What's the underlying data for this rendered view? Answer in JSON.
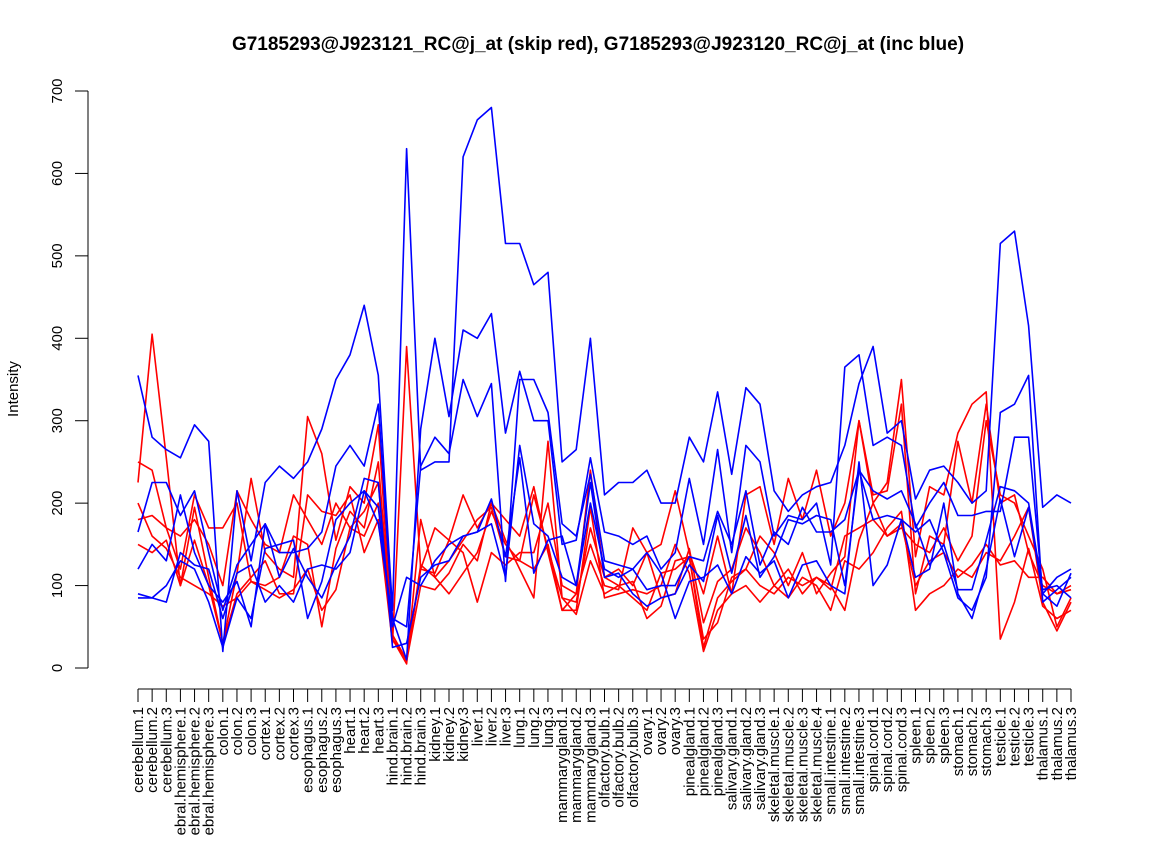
{
  "chart_data": {
    "type": "line",
    "title": "G7185293@J923121_RC@j_at (skip red), G7185293@J923120_RC@j_at (inc blue)",
    "xlabel": "",
    "ylabel": "Intensity",
    "ylim": [
      0,
      700
    ],
    "yticks": [
      0,
      100,
      200,
      300,
      400,
      500,
      600,
      700
    ],
    "categories": [
      "cerebellum.1",
      "cerebellum.2",
      "cerebellum.3",
      "cerebral.hemisphere.1",
      "cerebral.hemisphere.2",
      "cerebral.hemisphere.3",
      "colon.1",
      "colon.2",
      "colon.3",
      "cortex.1",
      "cortex.2",
      "cortex.3",
      "esophagus.1",
      "esophagus.2",
      "esophagus.3",
      "heart.1",
      "heart.2",
      "heart.3",
      "hind.brain.1",
      "hind.brain.2",
      "hind.brain.3",
      "kidney.1",
      "kidney.2",
      "kidney.3",
      "liver.1",
      "liver.2",
      "liver.3",
      "lung.1",
      "lung.2",
      "lung.3",
      "mammarygland.1",
      "mammarygland.2",
      "mammarygland.3",
      "olfactory.bulb.1",
      "olfactory.bulb.2",
      "olfactory.bulb.3",
      "ovary.1",
      "ovary.2",
      "ovary.3",
      "pinealgland.1",
      "pinealgland.2",
      "pinealgland.3",
      "salivary.gland.1",
      "salivary.gland.2",
      "salivary.gland.3",
      "skeletal.muscle.1",
      "skeletal.muscle.2",
      "skeletal.muscle.3",
      "skeletal.muscle.4",
      "small.intestine.1",
      "small.intestine.2",
      "small.intestine.3",
      "spinal.cord.1",
      "spinal.cord.2",
      "spinal.cord.3",
      "spleen.1",
      "spleen.2",
      "spleen.3",
      "stomach.1",
      "stomach.2",
      "stomach.3",
      "testicle.1",
      "testicle.2",
      "testicle.3",
      "thalamus.1",
      "thalamus.2",
      "thalamus.3"
    ],
    "tick_labels": [
      "cerebellum.1",
      "cerebellum.2",
      "cerebellum.3",
      "ebral.hemisphere.1",
      "ebral.hemisphere.2",
      "ebral.hemisphere.3",
      "colon.1",
      "colon.2",
      "colon.3",
      "cortex.1",
      "cortex.2",
      "cortex.3",
      "esophagus.1",
      "esophagus.2",
      "esophagus.3",
      "heart.1",
      "heart.2",
      "heart.3",
      "hind.brain.1",
      "hind.brain.2",
      "hind.brain.3",
      "kidney.1",
      "kidney.2",
      "kidney.3",
      "liver.1",
      "liver.2",
      "liver.3",
      "lung.1",
      "lung.2",
      "lung.3",
      "mammarygland.1",
      "mammarygland.2",
      "mammarygland.3",
      "olfactory.bulb.1",
      "olfactory.bulb.2",
      "olfactory.bulb.3",
      "ovary.1",
      "ovary.2",
      "ovary.3",
      "pinealgland.1",
      "pinealgland.2",
      "pinealgland.3",
      "salivary.gland.1",
      "salivary.gland.2",
      "salivary.gland.3",
      "skeletal.muscle.1",
      "skeletal.muscle.2",
      "skeletal.muscle.3",
      "skeletal.muscle.4",
      "small.intestine.1",
      "small.intestine.2",
      "small.intestine.3",
      "spinal.cord.1",
      "spinal.cord.2",
      "spinal.cord.3",
      "spleen.1",
      "spleen.2",
      "spleen.3",
      "stomach.1",
      "stomach.2",
      "stomach.3",
      "testicle.1",
      "testicle.2",
      "testicle.3",
      "thalamus.1",
      "thalamus.2",
      "thalamus.3"
    ],
    "grid": false,
    "legend": "none",
    "series": [
      {
        "name": "skip red 1",
        "color": "#ff0000",
        "values": [
          225,
          405,
          255,
          100,
          195,
          110,
          30,
          115,
          230,
          140,
          120,
          110,
          305,
          260,
          155,
          220,
          200,
          295,
          35,
          5,
          180,
          110,
          130,
          155,
          180,
          195,
          135,
          130,
          210,
          145,
          85,
          65,
          130,
          90,
          100,
          105,
          60,
          75,
          130,
          135,
          25,
          85,
          105,
          120,
          160,
          140,
          100,
          140,
          90,
          115,
          135,
          300,
          200,
          225,
          350,
          135,
          220,
          210,
          285,
          320,
          335,
          35,
          80,
          145,
          75,
          60,
          70
        ]
      },
      {
        "name": "skip red 2",
        "color": "#ff0000",
        "values": [
          250,
          240,
          170,
          160,
          180,
          150,
          100,
          215,
          180,
          150,
          140,
          210,
          180,
          150,
          200,
          170,
          160,
          200,
          40,
          10,
          120,
          170,
          155,
          210,
          170,
          200,
          180,
          160,
          220,
          140,
          70,
          90,
          150,
          100,
          95,
          170,
          140,
          150,
          215,
          140,
          90,
          160,
          90,
          210,
          220,
          150,
          230,
          180,
          240,
          160,
          200,
          300,
          210,
          215,
          320,
          90,
          160,
          150,
          275,
          200,
          320,
          200,
          210,
          140,
          100,
          90,
          95
        ]
      },
      {
        "name": "skip red 3",
        "color": "#ff0000",
        "values": [
          200,
          160,
          145,
          110,
          100,
          90,
          75,
          85,
          105,
          95,
          85,
          95,
          120,
          70,
          95,
          170,
          190,
          225,
          40,
          8,
          100,
          95,
          115,
          150,
          130,
          200,
          155,
          120,
          85,
          275,
          85,
          80,
          170,
          110,
          100,
          85,
          70,
          115,
          120,
          135,
          35,
          55,
          110,
          120,
          100,
          90,
          110,
          100,
          110,
          95,
          160,
          170,
          180,
          160,
          170,
          150,
          140,
          170,
          130,
          160,
          300,
          210,
          200,
          160,
          120,
          50,
          85
        ]
      },
      {
        "name": "skip red 4",
        "color": "#ff0000",
        "values": [
          150,
          140,
          155,
          100,
          155,
          100,
          30,
          90,
          110,
          130,
          90,
          90,
          210,
          190,
          185,
          210,
          140,
          180,
          30,
          390,
          120,
          115,
          155,
          140,
          80,
          140,
          125,
          140,
          140,
          200,
          100,
          90,
          240,
          110,
          120,
          100,
          140,
          85,
          90,
          145,
          55,
          105,
          120,
          170,
          140,
          100,
          120,
          90,
          110,
          100,
          70,
          155,
          200,
          160,
          175,
          100,
          130,
          140,
          110,
          125,
          150,
          125,
          130,
          110,
          110,
          90,
          100
        ]
      },
      {
        "name": "skip red 5",
        "color": "#ff0000",
        "values": [
          180,
          185,
          170,
          120,
          210,
          170,
          170,
          200,
          105,
          100,
          110,
          160,
          150,
          50,
          145,
          190,
          170,
          250,
          35,
          10,
          125,
          110,
          90,
          115,
          140,
          190,
          150,
          130,
          120,
          150,
          70,
          70,
          195,
          85,
          90,
          95,
          90,
          100,
          150,
          115,
          20,
          70,
          90,
          100,
          80,
          100,
          85,
          110,
          100,
          70,
          130,
          120,
          140,
          170,
          190,
          70,
          90,
          100,
          120,
          110,
          140,
          130,
          160,
          195,
          80,
          45,
          80
        ]
      },
      {
        "name": "inc blue 1",
        "color": "#0000ff",
        "values": [
          355,
          280,
          265,
          255,
          295,
          275,
          20,
          215,
          130,
          225,
          245,
          230,
          250,
          290,
          350,
          380,
          440,
          355,
          70,
          630,
          240,
          250,
          250,
          620,
          665,
          680,
          515,
          515,
          465,
          480,
          250,
          265,
          400,
          210,
          225,
          225,
          240,
          200,
          200,
          280,
          250,
          335,
          235,
          340,
          320,
          215,
          190,
          210,
          220,
          225,
          270,
          345,
          390,
          285,
          300,
          205,
          240,
          245,
          225,
          200,
          215,
          515,
          530,
          415,
          195,
          210,
          200
        ]
      },
      {
        "name": "inc blue 2",
        "color": "#0000ff",
        "values": [
          165,
          225,
          225,
          185,
          215,
          140,
          70,
          125,
          150,
          175,
          140,
          140,
          145,
          165,
          245,
          270,
          245,
          320,
          60,
          10,
          290,
          400,
          305,
          410,
          400,
          430,
          285,
          360,
          300,
          300,
          150,
          155,
          255,
          165,
          160,
          150,
          160,
          120,
          140,
          230,
          150,
          265,
          140,
          270,
          250,
          160,
          185,
          180,
          200,
          125,
          365,
          380,
          270,
          280,
          270,
          170,
          200,
          225,
          185,
          185,
          190,
          190,
          280,
          280,
          90,
          75,
          115
        ]
      },
      {
        "name": "inc blue 3",
        "color": "#0000ff",
        "values": [
          85,
          85,
          80,
          140,
          125,
          120,
          60,
          115,
          125,
          80,
          100,
          80,
          120,
          125,
          120,
          140,
          215,
          175,
          60,
          50,
          245,
          280,
          260,
          350,
          305,
          345,
          105,
          350,
          350,
          310,
          175,
          160,
          235,
          130,
          125,
          120,
          95,
          100,
          100,
          135,
          130,
          190,
          150,
          215,
          125,
          165,
          150,
          195,
          165,
          165,
          180,
          240,
          180,
          185,
          180,
          165,
          180,
          140,
          85,
          70,
          110,
          310,
          320,
          355,
          80,
          95,
          110
        ]
      },
      {
        "name": "inc blue 4",
        "color": "#0000ff",
        "values": [
          120,
          150,
          130,
          210,
          140,
          100,
          80,
          105,
          50,
          175,
          110,
          145,
          110,
          85,
          125,
          160,
          230,
          225,
          25,
          30,
          110,
          125,
          130,
          160,
          165,
          205,
          135,
          255,
          115,
          155,
          160,
          100,
          200,
          120,
          110,
          120,
          140,
          115,
          60,
          105,
          110,
          125,
          90,
          135,
          115,
          130,
          85,
          125,
          130,
          100,
          90,
          250,
          100,
          125,
          180,
          110,
          120,
          200,
          90,
          60,
          120,
          205,
          135,
          195,
          90,
          110,
          120
        ]
      },
      {
        "name": "inc blue 5",
        "color": "#0000ff",
        "values": [
          90,
          85,
          100,
          130,
          120,
          80,
          25,
          85,
          60,
          145,
          150,
          155,
          60,
          105,
          180,
          200,
          215,
          195,
          50,
          110,
          100,
          130,
          150,
          160,
          165,
          175,
          110,
          270,
          175,
          160,
          110,
          100,
          225,
          110,
          115,
          90,
          75,
          85,
          90,
          125,
          105,
          185,
          115,
          185,
          110,
          135,
          180,
          175,
          185,
          180,
          100,
          240,
          215,
          205,
          215,
          175,
          125,
          150,
          95,
          95,
          155,
          220,
          215,
          200,
          95,
          100,
          85
        ]
      }
    ]
  }
}
